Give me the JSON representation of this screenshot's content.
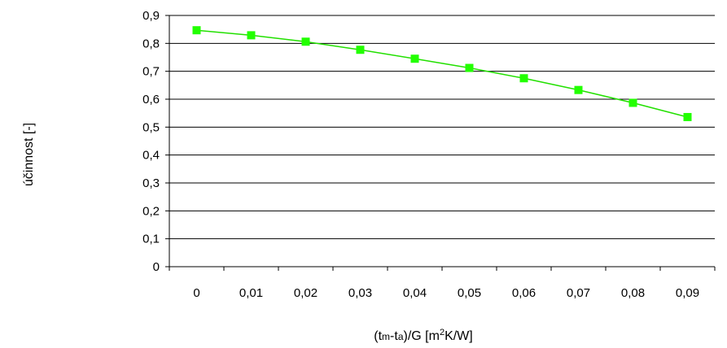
{
  "chart_data": {
    "type": "line",
    "x_categories": [
      "0",
      "0,01",
      "0,02",
      "0,03",
      "0,04",
      "0,05",
      "0,06",
      "0,07",
      "0,08",
      "0,09"
    ],
    "series": [
      {
        "values": [
          0.847,
          0.829,
          0.806,
          0.777,
          0.745,
          0.712,
          0.675,
          0.633,
          0.587,
          0.536
        ],
        "color": "#22e000",
        "marker_color": "#22ff00",
        "marker": "square"
      }
    ],
    "ylim": [
      0,
      0.9
    ],
    "yticks": [
      "0",
      "0,1",
      "0,2",
      "0,3",
      "0,4",
      "0,5",
      "0,6",
      "0,7",
      "0,8",
      "0,9"
    ],
    "ylabel": "účinnost [-]",
    "xlabel": {
      "part1": "(t",
      "sub1": "m",
      "part2": "-t",
      "sub2": "a",
      "part3": ")/G [m",
      "sup": "2",
      "part4": "K/W]"
    },
    "grid": "horizontal",
    "legend": "none"
  }
}
